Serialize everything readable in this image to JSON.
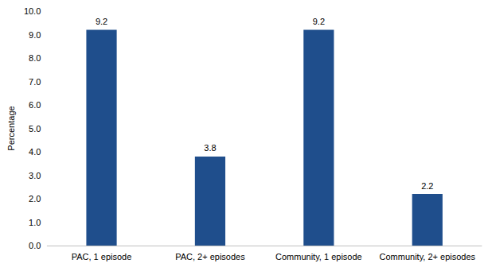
{
  "chart_data": {
    "type": "bar",
    "y_label": "Percentage",
    "categories": [
      "PAC, 1 episode",
      "PAC, 2+ episodes",
      "Community, 1 episode",
      "Community, 2+ episodes"
    ],
    "values": [
      9.2,
      3.8,
      9.2,
      2.2
    ],
    "color": "#1f4e8c",
    "ylim": [
      0,
      10
    ],
    "yticks": [
      {
        "value": 0,
        "label": "0.0"
      },
      {
        "value": 1,
        "label": "1.0"
      },
      {
        "value": 2,
        "label": "2.0"
      },
      {
        "value": 3,
        "label": "3.0"
      },
      {
        "value": 4,
        "label": "4.0"
      },
      {
        "value": 5,
        "label": "5.0"
      },
      {
        "value": 6,
        "label": "6.0"
      },
      {
        "value": 7,
        "label": "7.0"
      },
      {
        "value": 8,
        "label": "8.0"
      },
      {
        "value": 9,
        "label": "9.0"
      },
      {
        "value": 10,
        "label": "10.0"
      }
    ],
    "grid": false,
    "data_labels": true
  }
}
